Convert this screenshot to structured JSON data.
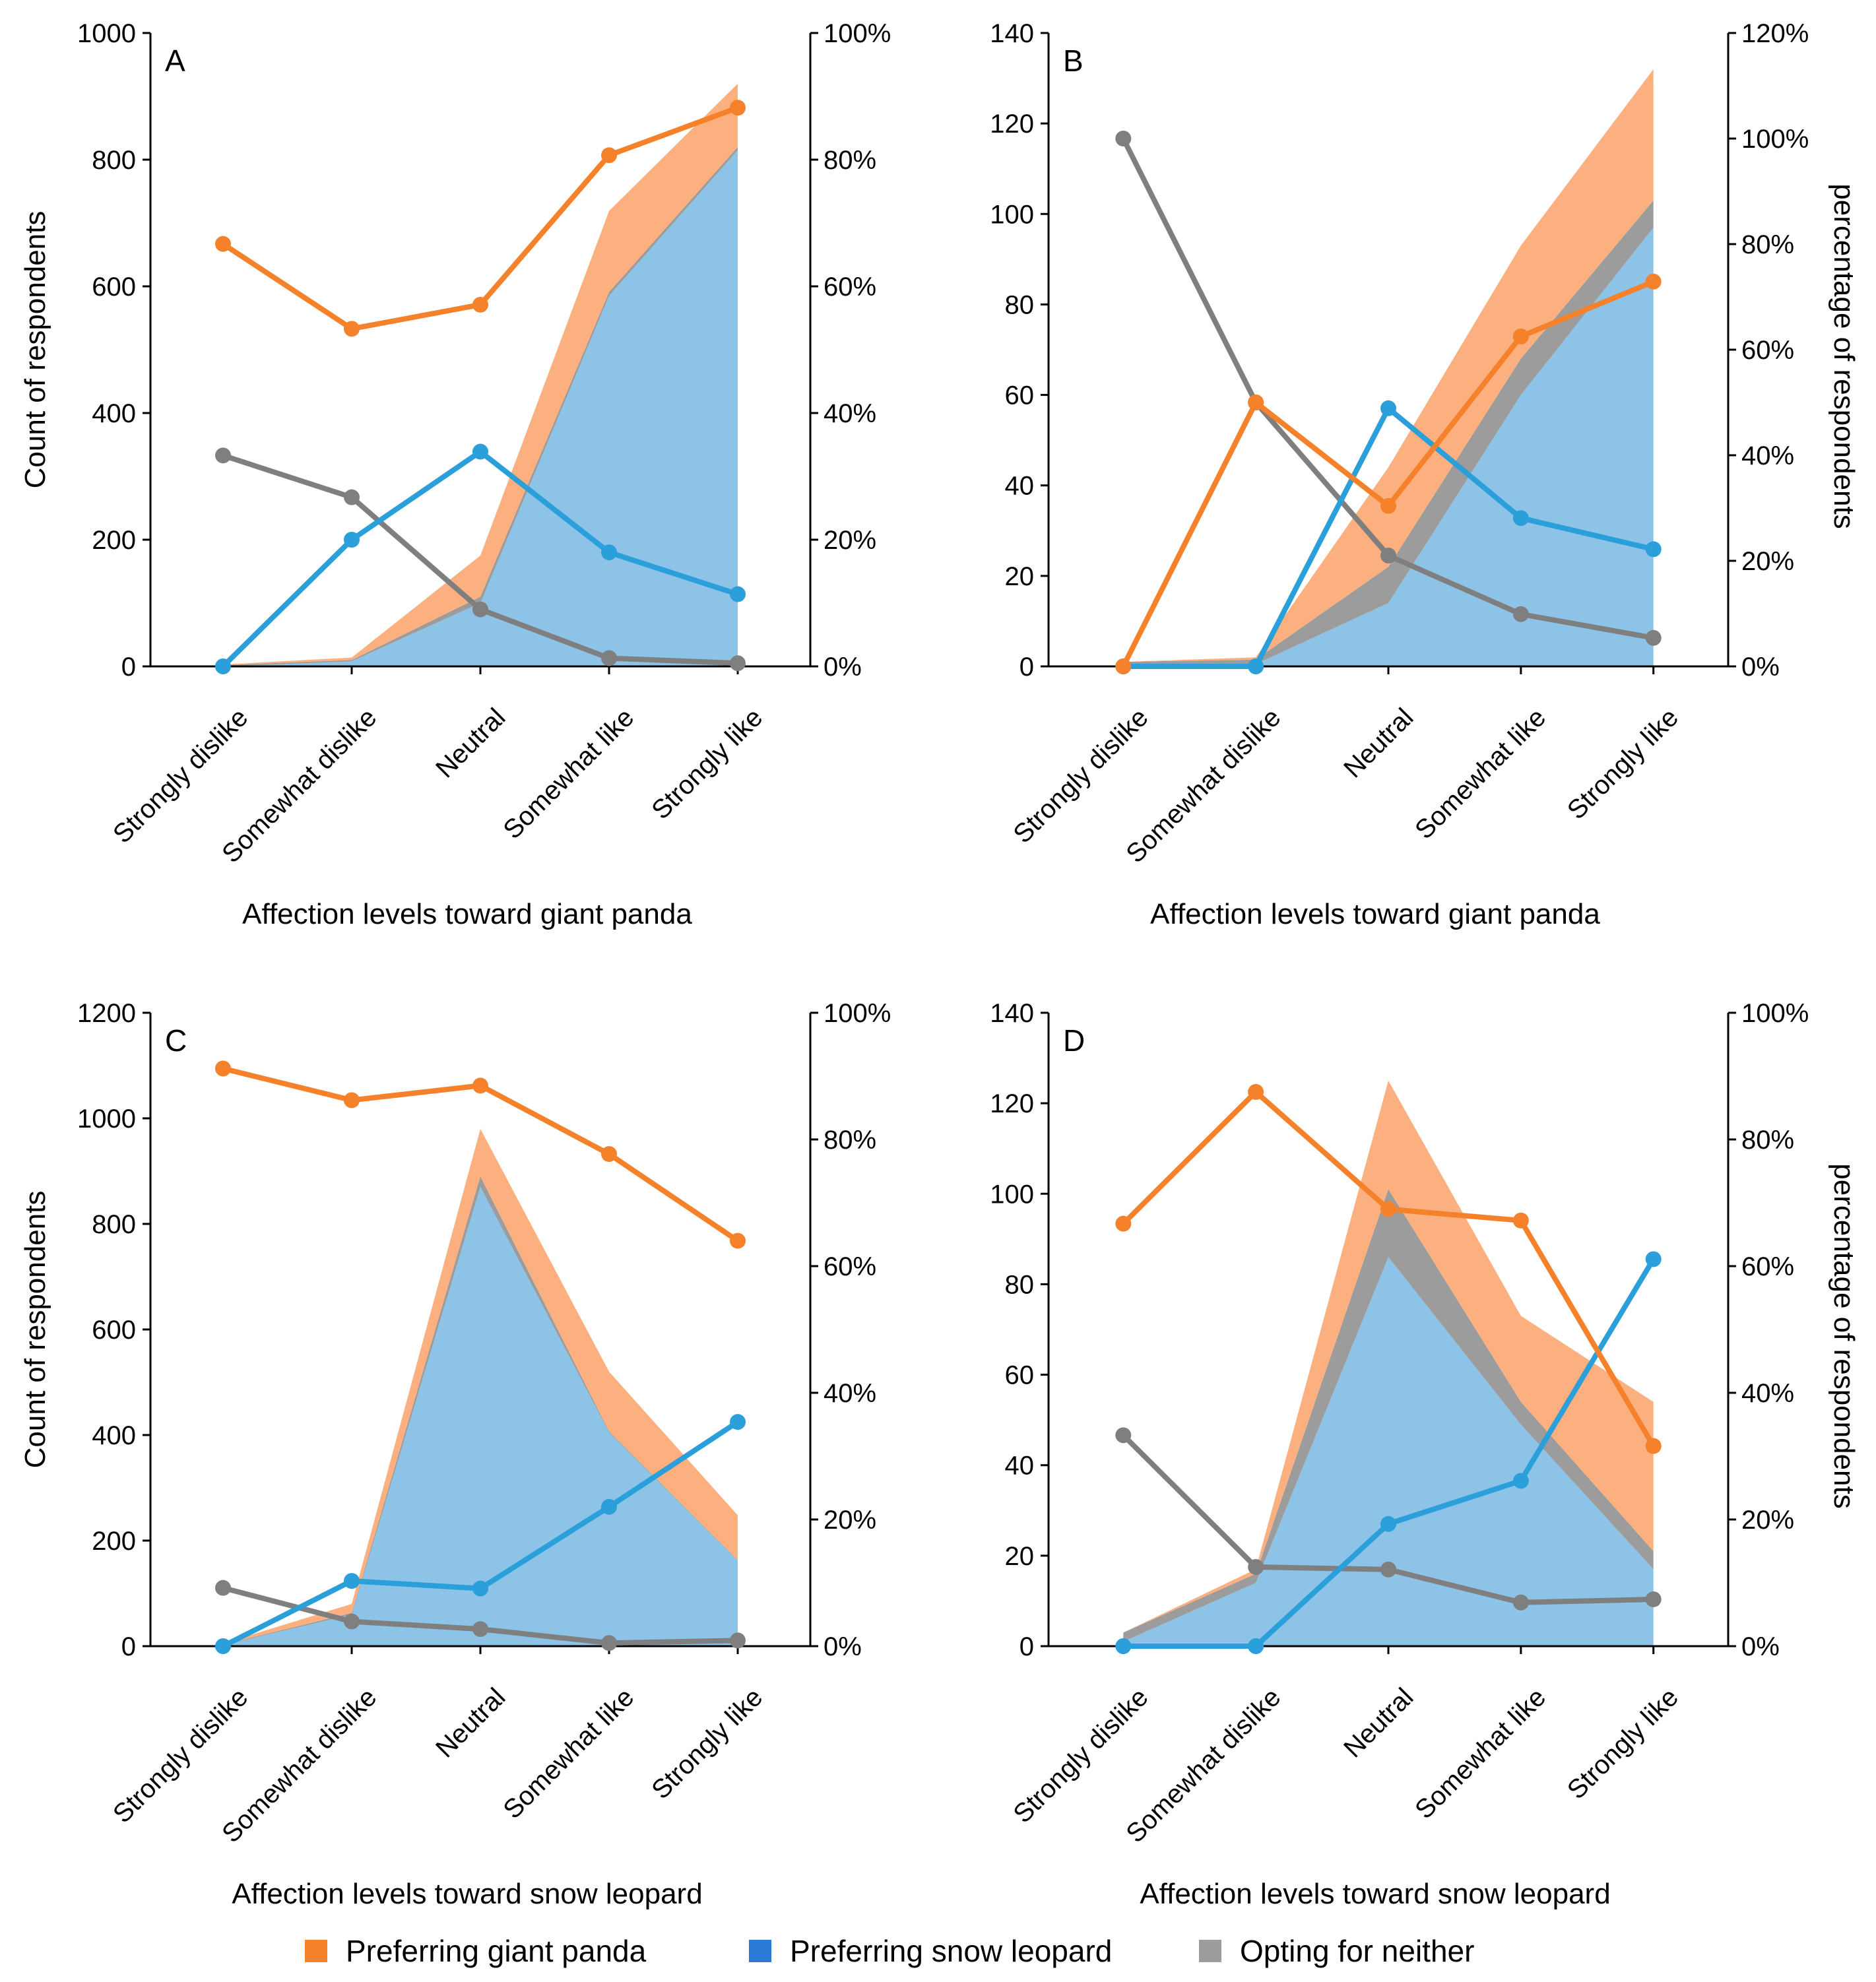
{
  "colors": {
    "panda": "#F5822A",
    "panda_area": "#FDB07F",
    "leopard": "#2A9FDA",
    "leopard_area": "#8CC3E6",
    "neither": "#7F7F7F",
    "neither_area": "#9C9C9C",
    "legend_leopard": "#2A7BD6",
    "legend_neither": "#9C9C9C"
  },
  "legend": {
    "panda_label": "Preferring giant panda",
    "leopard_label": "Preferring snow leopard",
    "neither_label": "Opting for neither"
  },
  "chart_data": [
    {
      "panel": "A",
      "type": "area",
      "categories": [
        "Strongly dislike",
        "Somewhat dislike",
        "Neutral",
        "Somewhat like",
        "Strongly like"
      ],
      "xlabel": "Affection levels toward giant panda",
      "ylabel_left": "Count of respondents",
      "ylabel_right": "",
      "ylim_left": [
        0,
        1000
      ],
      "yticks_left": [
        0,
        200,
        400,
        600,
        800,
        1000
      ],
      "yticklabels_left": [
        "0",
        "200",
        "400",
        "600",
        "800",
        "1000"
      ],
      "ylim_right": [
        0,
        100
      ],
      "yticks_right": [
        0,
        20,
        40,
        60,
        80,
        100
      ],
      "yticklabels_right": [
        "0%",
        "20%",
        "40%",
        "60%",
        "80%",
        "100%"
      ],
      "count_series": [
        {
          "name": "Preferring snow leopard",
          "values": [
            0,
            8,
            100,
            585,
            815
          ]
        },
        {
          "name": "Opting for neither",
          "values": [
            2,
            2,
            10,
            6,
            5
          ]
        },
        {
          "name": "Preferring giant panda",
          "values": [
            1,
            4,
            65,
            128,
            100
          ]
        }
      ],
      "percent_series": [
        {
          "name": "Preferring giant panda",
          "values": [
            66.7,
            53.3,
            57.1,
            80.7,
            88.2
          ]
        },
        {
          "name": "Preferring snow leopard",
          "values": [
            0,
            20,
            33.9,
            18,
            11.4
          ]
        },
        {
          "name": "Opting for neither",
          "values": [
            33.3,
            26.7,
            9,
            1.3,
            0.5
          ]
        }
      ]
    },
    {
      "panel": "B",
      "type": "area",
      "categories": [
        "Strongly dislike",
        "Somewhat dislike",
        "Neutral",
        "Somewhat like",
        "Strongly like"
      ],
      "xlabel": "Affection levels toward giant panda",
      "ylabel_left": "",
      "ylabel_right": "percentage of respondents",
      "ylim_left": [
        0,
        140
      ],
      "yticks_left": [
        0,
        20,
        40,
        60,
        80,
        100,
        120,
        140
      ],
      "yticklabels_left": [
        "0",
        "20",
        "40",
        "60",
        "80",
        "100",
        "120",
        "140"
      ],
      "ylim_right": [
        0,
        120
      ],
      "yticks_right": [
        0,
        20,
        40,
        60,
        80,
        100,
        120
      ],
      "yticklabels_right": [
        "0%",
        "20%",
        "40%",
        "60%",
        "80%",
        "100%",
        "120%"
      ],
      "count_series": [
        {
          "name": "Preferring snow leopard",
          "values": [
            0,
            0.5,
            14,
            60,
            97
          ]
        },
        {
          "name": "Opting for neither",
          "values": [
            1,
            1,
            8,
            8,
            6
          ]
        },
        {
          "name": "Preferring giant panda",
          "values": [
            0,
            0.5,
            22,
            25,
            29
          ]
        }
      ],
      "percent_series": [
        {
          "name": "Preferring giant panda",
          "values": [
            0,
            50,
            30.4,
            62.5,
            72.9
          ]
        },
        {
          "name": "Preferring snow leopard",
          "values": [
            0,
            0,
            48.9,
            28.1,
            22.2
          ]
        },
        {
          "name": "Opting for neither",
          "values": [
            100,
            50,
            21,
            9.9,
            5.4
          ]
        }
      ]
    },
    {
      "panel": "C",
      "type": "area",
      "categories": [
        "Strongly dislike",
        "Somewhat dislike",
        "Neutral",
        "Somewhat like",
        "Strongly like"
      ],
      "xlabel": "Affection levels toward snow leopard",
      "ylabel_left": "Count of respondents",
      "ylabel_right": "",
      "ylim_left": [
        0,
        1200
      ],
      "yticks_left": [
        0,
        200,
        400,
        600,
        800,
        1000,
        1200
      ],
      "yticklabels_left": [
        "0",
        "200",
        "400",
        "600",
        "800",
        "1000",
        "1200"
      ],
      "ylim_right": [
        0,
        100
      ],
      "yticks_right": [
        0,
        20,
        40,
        60,
        80,
        100
      ],
      "yticklabels_right": [
        "0%",
        "20%",
        "40%",
        "60%",
        "80%",
        "100%"
      ],
      "count_series": [
        {
          "name": "Preferring snow leopard",
          "values": [
            2,
            60,
            870,
            405,
            162
          ]
        },
        {
          "name": "Opting for neither",
          "values": [
            1,
            3,
            20,
            2,
            1
          ]
        },
        {
          "name": "Preferring giant panda",
          "values": [
            2,
            17,
            90,
            113,
            85
          ]
        }
      ],
      "percent_series": [
        {
          "name": "Preferring giant panda",
          "values": [
            91.2,
            86.2,
            88.5,
            77.7,
            64
          ]
        },
        {
          "name": "Preferring snow leopard",
          "values": [
            0,
            10.3,
            9.1,
            22,
            35.4
          ]
        },
        {
          "name": "Opting for neither",
          "values": [
            9.2,
            3.9,
            2.7,
            0.5,
            0.9
          ]
        }
      ]
    },
    {
      "panel": "D",
      "type": "area",
      "categories": [
        "Strongly dislike",
        "Somewhat dislike",
        "Neutral",
        "Somewhat like",
        "Strongly like"
      ],
      "xlabel": "Affection levels toward snow leopard",
      "ylabel_left": "",
      "ylabel_right": "percentage of respondents",
      "ylim_left": [
        0,
        140
      ],
      "yticks_left": [
        0,
        20,
        40,
        60,
        80,
        100,
        120,
        140
      ],
      "yticklabels_left": [
        "0",
        "20",
        "40",
        "60",
        "80",
        "100",
        "120",
        "140"
      ],
      "ylim_right": [
        0,
        100
      ],
      "yticks_right": [
        0,
        20,
        40,
        60,
        80,
        100
      ],
      "yticklabels_right": [
        "0%",
        "20%",
        "40%",
        "60%",
        "80%",
        "100%"
      ],
      "count_series": [
        {
          "name": "Preferring snow leopard",
          "values": [
            1,
            14,
            86,
            49,
            17
          ]
        },
        {
          "name": "Opting for neither",
          "values": [
            2,
            2,
            15,
            5,
            4
          ]
        },
        {
          "name": "Preferring giant panda",
          "values": [
            0,
            1,
            24,
            19,
            33
          ]
        }
      ],
      "percent_series": [
        {
          "name": "Preferring giant panda",
          "values": [
            66.7,
            87.5,
            69,
            67.2,
            31.6
          ]
        },
        {
          "name": "Preferring snow leopard",
          "values": [
            0,
            0,
            19.3,
            26.1,
            61.1
          ]
        },
        {
          "name": "Opting for neither",
          "values": [
            33.3,
            12.5,
            12.1,
            6.9,
            7.4
          ]
        }
      ]
    }
  ]
}
